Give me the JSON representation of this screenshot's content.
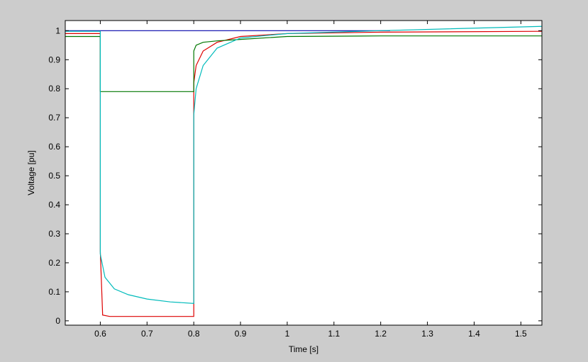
{
  "chart_data": {
    "type": "line",
    "title": "",
    "xlabel": "Time [s]",
    "ylabel": "Voltage [pu]",
    "xlim": [
      0.525,
      1.545
    ],
    "ylim": [
      -0.015,
      1.035
    ],
    "xticks": [
      0.6,
      0.7,
      0.8,
      0.9,
      1,
      1.1,
      1.2,
      1.3,
      1.4,
      1.5
    ],
    "xtick_labels": [
      "0.6",
      "0.7",
      "0.8",
      "0.9",
      "1",
      "1.1",
      "1.2",
      "1.3",
      "1.4",
      "1.5"
    ],
    "yticks": [
      0,
      0.1,
      0.2,
      0.3,
      0.4,
      0.5,
      0.6,
      0.7,
      0.8,
      0.9,
      1
    ],
    "ytick_labels": [
      "0",
      "0.1",
      "0.2",
      "0.3",
      "0.4",
      "0.5",
      "0.6",
      "0.7",
      "0.8",
      "0.9",
      "1"
    ],
    "grid": false,
    "background_color": "#cccccc",
    "plot_color": "#ffffff",
    "series": [
      {
        "color": "#0000aa",
        "x": [
          0.525,
          0.6,
          0.8,
          1.0,
          1.22
        ],
        "y": [
          1.0,
          1.0,
          1.0,
          1.0,
          1.0
        ]
      },
      {
        "color": "#dd0000",
        "x": [
          0.525,
          0.6,
          0.6,
          0.605,
          0.62,
          0.8,
          0.8,
          0.805,
          0.82,
          0.85,
          0.9,
          1.0,
          1.2,
          1.545
        ],
        "y": [
          0.99,
          0.99,
          0.24,
          0.02,
          0.015,
          0.015,
          0.82,
          0.88,
          0.93,
          0.96,
          0.98,
          0.99,
          0.995,
          0.998
        ]
      },
      {
        "color": "#007700",
        "x": [
          0.525,
          0.6,
          0.6,
          0.8,
          0.8,
          0.805,
          0.82,
          0.85,
          0.9,
          1.0,
          1.2,
          1.545
        ],
        "y": [
          0.98,
          0.98,
          0.79,
          0.79,
          0.93,
          0.95,
          0.96,
          0.965,
          0.97,
          0.98,
          0.982,
          0.982
        ]
      },
      {
        "color": "#00bbbb",
        "x": [
          0.525,
          0.6,
          0.6,
          0.61,
          0.63,
          0.66,
          0.7,
          0.75,
          0.8,
          0.8,
          0.805,
          0.82,
          0.85,
          0.9,
          1.0,
          1.2,
          1.545
        ],
        "y": [
          0.998,
          0.998,
          0.23,
          0.15,
          0.11,
          0.09,
          0.075,
          0.065,
          0.06,
          0.71,
          0.8,
          0.88,
          0.94,
          0.975,
          0.99,
          1.0,
          1.015
        ]
      }
    ]
  }
}
